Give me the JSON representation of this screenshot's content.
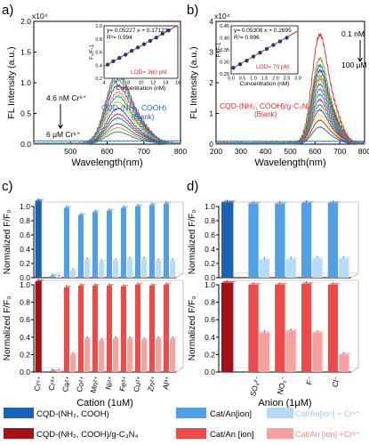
{
  "panel_letters": {
    "a": "a)",
    "b": "b)",
    "c": "c)",
    "d": "d)"
  },
  "chart_data": [
    {
      "id": "a",
      "type": "line",
      "exponent_label": "x10⁴",
      "xlabel": "Wavelength(nm)",
      "ylabel": "FL Intensity (a.u.)",
      "xlim": [
        400,
        800
      ],
      "ylim": [
        0,
        2.0
      ],
      "xticks": [
        500,
        600,
        700,
        800
      ],
      "yticks": [
        0.0,
        0.5,
        1.0,
        1.5,
        2.0
      ],
      "peak_center": 625,
      "peak_heights": [
        1.06,
        1.0,
        0.94,
        0.86,
        0.76,
        0.7,
        0.62,
        0.52,
        0.44,
        0.38,
        0.3,
        0.24,
        0.18
      ],
      "series_colors": [
        "#e53935",
        "#1e88e5",
        "#43a047",
        "#8e24aa",
        "#fb8c00",
        "#00acc1",
        "#c0ca33",
        "#3949ab",
        "#d81b60",
        "#00897b",
        "#6d4c41",
        "#7cb342",
        "#546e7a"
      ],
      "annotations": {
        "top": "4.6 nM Cr⁶⁺",
        "bottom": "6 μM Cr⁶⁺",
        "curve": "CQD-(NH₂, COOH)",
        "blank": "(Blank)"
      },
      "inset": {
        "equation": "y= 0.05227 x + 0.17123",
        "r2": "R²= 0.994",
        "lod": "LOD= 360 pM",
        "xlabel": "Concentration (nM)",
        "ylabel": "F₀/F-1",
        "xlim": [
          4,
          16
        ],
        "ylim": [
          0.2,
          1.0
        ],
        "xticks": [
          4,
          6,
          8,
          10,
          12,
          14,
          16
        ],
        "yticks": [
          0.2,
          0.4,
          0.6,
          0.8,
          1.0
        ],
        "x": [
          4.6,
          5.5,
          6.5,
          7.5,
          8.5,
          9.5,
          10.5,
          11.5,
          12.5,
          13.5,
          14.5
        ],
        "y": [
          0.41,
          0.46,
          0.51,
          0.56,
          0.62,
          0.67,
          0.72,
          0.77,
          0.82,
          0.88,
          0.93
        ],
        "slope": 0.05227,
        "intercept": 0.17123
      }
    },
    {
      "id": "b",
      "type": "line",
      "exponent_label": "x10⁴",
      "xlabel": "Wavelength(nm)",
      "ylabel": "FL Intensity (a.u.)",
      "xlim": [
        200,
        800
      ],
      "ylim": [
        0,
        4
      ],
      "xticks": [
        200,
        300,
        400,
        500,
        600,
        700,
        800
      ],
      "yticks": [
        0,
        1,
        2,
        3,
        4
      ],
      "peak_center": 615,
      "peak_heights": [
        3.2,
        2.5,
        2.3,
        2.15,
        2.0,
        1.9,
        1.75,
        1.6,
        1.45,
        1.3,
        1.15,
        1.0,
        0.85,
        0.7,
        0.5
      ],
      "series_colors": [
        "#d32f2f",
        "#9e9d24",
        "#00897b",
        "#5e35b1",
        "#7cb342",
        "#ef6c00",
        "#1e88e5",
        "#8d6e63",
        "#00acc1",
        "#e91e63",
        "#43a047",
        "#3949ab",
        "#fdd835",
        "#c62828",
        "#1565c0"
      ],
      "annotations": {
        "top": "0.1 nM",
        "bottom": "100 μM",
        "curve": "CQD-(NH₂, COOH)/g-C₃N₄",
        "blank": "(Blank)"
      },
      "inset": {
        "equation": "y= 0.05308 x + 0.2695",
        "r2": "R²= 0.996",
        "lod": "LOD= 70 pM",
        "xlabel": "Concentration (nM)",
        "ylabel": "F₀/F-1",
        "xlim": [
          0,
          3
        ],
        "ylim": [
          0.25,
          0.45
        ],
        "xticks": [
          0.0,
          0.5,
          1.0,
          1.5,
          2.0,
          2.5,
          3.0
        ],
        "yticks": [
          0.25,
          0.3,
          0.35,
          0.4,
          0.45
        ],
        "x": [
          0.1,
          0.4,
          0.7,
          1.0,
          1.3,
          1.6,
          1.9,
          2.2,
          2.5
        ],
        "y": [
          0.275,
          0.29,
          0.305,
          0.322,
          0.338,
          0.354,
          0.37,
          0.385,
          0.4
        ],
        "slope": 0.05308,
        "intercept": 0.2695
      }
    },
    {
      "id": "c",
      "type": "bar",
      "ylabel": "Normalized F/F₀",
      "xlabel": "Cation (1uM)",
      "ylim": [
        0,
        1.0
      ],
      "yticks": [
        0.0,
        0.2,
        0.4,
        0.6,
        0.8,
        1.0
      ],
      "categories": [
        "Cr⁶⁺",
        "Cr³⁺",
        "Ca²⁺",
        "Co²⁺",
        "Mn²⁺",
        "Ni²⁺",
        "Fe³⁺",
        "Cu²⁺",
        "Zn²⁺",
        "Al³⁺"
      ],
      "top": {
        "series": [
          {
            "name": "CQD-(NH₂, COOH)",
            "values": [
              1.08,
              null,
              null,
              null,
              null,
              null,
              null,
              null,
              null,
              null
            ]
          },
          {
            "name": "Cat/An[ion]",
            "values": [
              null,
              0.02,
              0.98,
              0.88,
              0.92,
              0.94,
              0.98,
              1.0,
              1.02,
              1.04
            ]
          },
          {
            "name": "Cat/An[ion] + Cr⁶⁺",
            "values": [
              null,
              0.01,
              0.1,
              0.25,
              0.22,
              0.24,
              0.26,
              0.26,
              0.24,
              0.24
            ]
          }
        ]
      },
      "bottom": {
        "series": [
          {
            "name": "CQD-(NH₂, COOH)/g-C₃N₄",
            "values": [
              1.04,
              null,
              null,
              null,
              null,
              null,
              null,
              null,
              null,
              null
            ]
          },
          {
            "name": "Cat/An [ion]",
            "values": [
              null,
              0.01,
              0.97,
              0.99,
              0.99,
              0.99,
              0.98,
              1.0,
              0.99,
              1.0
            ]
          },
          {
            "name": "Cat/An [ion] +Cr⁶⁺",
            "values": [
              null,
              0.01,
              0.2,
              0.38,
              0.36,
              0.38,
              0.38,
              0.37,
              0.38,
              0.38
            ]
          }
        ]
      }
    },
    {
      "id": "d",
      "type": "bar",
      "ylabel": "Normalized F/F₀",
      "xlabel": "Anion (1μM)",
      "ylim": [
        0,
        1.0
      ],
      "yticks": [
        0.0,
        0.2,
        0.4,
        0.6,
        0.8,
        1.0
      ],
      "categories": [
        "",
        "SO₄²⁻",
        "NO₃⁻",
        "F⁻",
        "Cl⁻"
      ],
      "top": {
        "series": [
          {
            "name": "CQD-(NH₂, COOH)",
            "values": [
              1.06,
              null,
              null,
              null,
              null
            ]
          },
          {
            "name": "Cat/An[ion]",
            "values": [
              null,
              1.04,
              1.04,
              1.05,
              1.05
            ]
          },
          {
            "name": "Cat/An[ion] + Cr⁶⁺",
            "values": [
              null,
              0.25,
              0.26,
              0.27,
              0.27
            ]
          }
        ]
      },
      "bottom": {
        "series": [
          {
            "name": "CQD-(NH₂, COOH)/g-C₃N₄",
            "values": [
              1.02,
              null,
              null,
              null,
              null
            ]
          },
          {
            "name": "Cat/An [ion]",
            "values": [
              null,
              1.0,
              1.0,
              1.01,
              1.0
            ]
          },
          {
            "name": "Cat/An [ion] +Cr⁶⁺",
            "values": [
              null,
              0.45,
              0.47,
              0.45,
              0.2
            ]
          }
        ]
      }
    }
  ],
  "legend": {
    "items": [
      {
        "label": "CQD-(NH₂, COOH)",
        "color": "#1863b3"
      },
      {
        "label": "Cat/An[ion]",
        "color": "#4fa0e6"
      },
      {
        "label": "Cat/An[ion] + Cr⁶⁺",
        "color": "#b7dbf6"
      },
      {
        "label": "CQD-(NH₂, COOH)/g-C₃N₄",
        "color": "#a50f16"
      },
      {
        "label": "Cat/An [ion]",
        "color": "#ee4a4a"
      },
      {
        "label": "Cat/An [ion] +Cr⁶⁺",
        "color": "#f7a0a0"
      }
    ]
  }
}
